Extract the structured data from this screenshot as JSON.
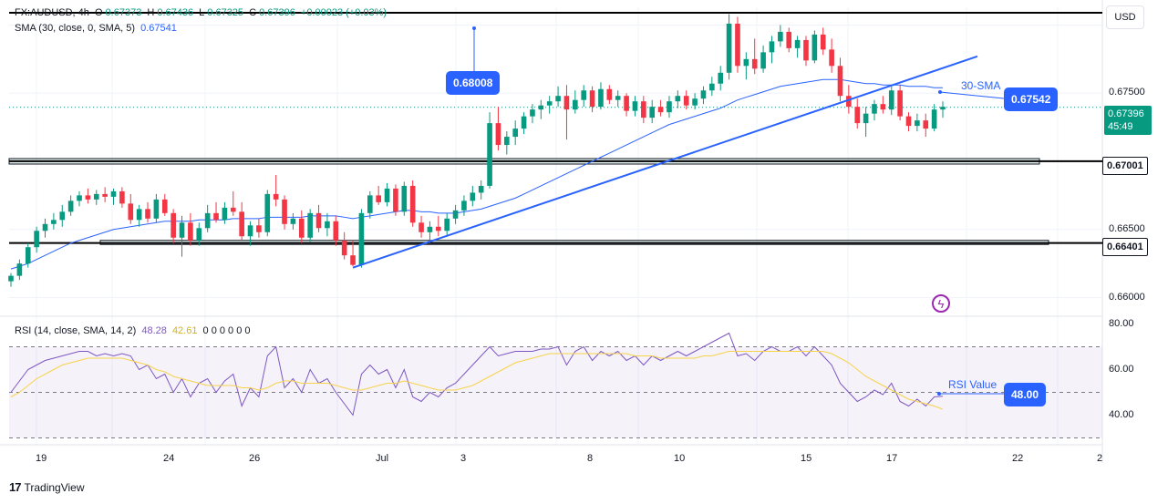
{
  "header": {
    "symbol": "FX:AUDUSD, 4h",
    "open_label": "O",
    "open": "0.67373",
    "high_label": "H",
    "high": "0.67436",
    "low_label": "L",
    "low": "0.67325",
    "close_label": "C",
    "close": "0.67396",
    "change": "+0.00023 (+0.03%)",
    "sma_label": "SMA (30, close, 0, SMA, 5)",
    "sma_value": "0.67541"
  },
  "rsi_header": {
    "label": "RSI (14, close, SMA, 14, 2)",
    "rsi_value": "48.28",
    "ma_value": "42.61",
    "extra_values": "0 0 0 0 0 0"
  },
  "currency_button": "USD",
  "branding": "TradingView",
  "price_axis": {
    "ticks": [
      "0.67500",
      "0.66500",
      "0.66000"
    ],
    "badges": {
      "current": {
        "price": "0.67396",
        "countdown": "45:49"
      },
      "level_high": "0.67001",
      "level_low": "0.66401"
    }
  },
  "rsi_axis": {
    "ticks": [
      "80.00",
      "60.00",
      "40.00"
    ]
  },
  "time_axis": {
    "labels": [
      "19",
      "24",
      "26",
      "Jul",
      "3",
      "8",
      "10",
      "15",
      "17",
      "22",
      "2"
    ]
  },
  "annotations": {
    "peak_callout": "0.68008",
    "sma_callout": "0.67542",
    "sma_text": "30-SMA",
    "rsi_text": "RSI Value",
    "rsi_callout": "48.00"
  },
  "colors": {
    "up": "#089981",
    "down": "#f23645",
    "sma": "#2962ff",
    "rsi": "#7e57c2",
    "rsi_ma": "#f7d34a",
    "trendline": "#2962ff"
  },
  "chart_data": {
    "type": "candlestick",
    "symbol": "FX:AUDUSD",
    "timeframe": "4h",
    "ylim": [
      0.6587,
      0.6813
    ],
    "horizontal_levels": [
      0.6809,
      0.67001,
      0.66401
    ],
    "support_zones": [
      [
        0.6698,
        0.6702
      ],
      [
        0.6639,
        0.6642
      ]
    ],
    "trendline": {
      "from_price": 0.6622,
      "to_price": 0.6777
    },
    "candles": [
      [
        0.6612,
        0.6618,
        0.6608,
        0.6616
      ],
      [
        0.6616,
        0.6628,
        0.6613,
        0.6625
      ],
      [
        0.6625,
        0.664,
        0.6622,
        0.6637
      ],
      [
        0.6637,
        0.6652,
        0.6633,
        0.6649
      ],
      [
        0.6649,
        0.6658,
        0.6644,
        0.6654
      ],
      [
        0.6654,
        0.6662,
        0.665,
        0.6657
      ],
      [
        0.6657,
        0.6668,
        0.6652,
        0.6663
      ],
      [
        0.6663,
        0.6675,
        0.666,
        0.6671
      ],
      [
        0.6671,
        0.6678,
        0.6667,
        0.6675
      ],
      [
        0.6675,
        0.668,
        0.6669,
        0.6672
      ],
      [
        0.6672,
        0.6679,
        0.6668,
        0.6676
      ],
      [
        0.6676,
        0.6681,
        0.667,
        0.6674
      ],
      [
        0.6674,
        0.668,
        0.6668,
        0.6678
      ],
      [
        0.6678,
        0.6681,
        0.6666,
        0.6669
      ],
      [
        0.6669,
        0.6676,
        0.6654,
        0.6657
      ],
      [
        0.6657,
        0.6668,
        0.6652,
        0.6665
      ],
      [
        0.6665,
        0.667,
        0.6655,
        0.6658
      ],
      [
        0.6658,
        0.6676,
        0.6655,
        0.6672
      ],
      [
        0.6672,
        0.6676,
        0.666,
        0.6662
      ],
      [
        0.6662,
        0.6665,
        0.664,
        0.6644
      ],
      [
        0.6644,
        0.666,
        0.663,
        0.6655
      ],
      [
        0.6655,
        0.6662,
        0.6638,
        0.6642
      ],
      [
        0.6642,
        0.6655,
        0.6638,
        0.6651
      ],
      [
        0.6651,
        0.6668,
        0.6648,
        0.6662
      ],
      [
        0.6662,
        0.667,
        0.6655,
        0.6657
      ],
      [
        0.6657,
        0.667,
        0.6654,
        0.6666
      ],
      [
        0.6666,
        0.6678,
        0.666,
        0.6663
      ],
      [
        0.6663,
        0.667,
        0.6642,
        0.6645
      ],
      [
        0.6645,
        0.6656,
        0.6638,
        0.6653
      ],
      [
        0.6653,
        0.6658,
        0.6644,
        0.6648
      ],
      [
        0.6648,
        0.6679,
        0.6645,
        0.6676
      ],
      [
        0.6676,
        0.669,
        0.6667,
        0.6672
      ],
      [
        0.6672,
        0.6675,
        0.665,
        0.6654
      ],
      [
        0.6654,
        0.6662,
        0.665,
        0.6658
      ],
      [
        0.6658,
        0.6664,
        0.664,
        0.6644
      ],
      [
        0.6644,
        0.6665,
        0.6641,
        0.6662
      ],
      [
        0.6662,
        0.6668,
        0.6648,
        0.6651
      ],
      [
        0.6651,
        0.6662,
        0.6645,
        0.6656
      ],
      [
        0.6656,
        0.666,
        0.6638,
        0.6642
      ],
      [
        0.6642,
        0.6648,
        0.6628,
        0.6631
      ],
      [
        0.6631,
        0.6642,
        0.6623,
        0.6624
      ],
      [
        0.6624,
        0.6665,
        0.6622,
        0.6662
      ],
      [
        0.6662,
        0.6678,
        0.6658,
        0.6675
      ],
      [
        0.6675,
        0.6682,
        0.6668,
        0.667
      ],
      [
        0.667,
        0.6684,
        0.6667,
        0.668
      ],
      [
        0.668,
        0.6683,
        0.666,
        0.6663
      ],
      [
        0.6663,
        0.6685,
        0.666,
        0.6682
      ],
      [
        0.6682,
        0.6686,
        0.6652,
        0.6655
      ],
      [
        0.6655,
        0.666,
        0.6644,
        0.6648
      ],
      [
        0.6648,
        0.6656,
        0.664,
        0.6652
      ],
      [
        0.6652,
        0.666,
        0.6645,
        0.6649
      ],
      [
        0.6649,
        0.6662,
        0.6646,
        0.6658
      ],
      [
        0.6658,
        0.6668,
        0.6654,
        0.6664
      ],
      [
        0.6664,
        0.6675,
        0.666,
        0.6671
      ],
      [
        0.6671,
        0.6682,
        0.6667,
        0.6677
      ],
      [
        0.6677,
        0.6686,
        0.6672,
        0.6682
      ],
      [
        0.6682,
        0.6736,
        0.668,
        0.6728
      ],
      [
        0.6728,
        0.674,
        0.6708,
        0.6712
      ],
      [
        0.6712,
        0.6722,
        0.6705,
        0.6718
      ],
      [
        0.6718,
        0.673,
        0.6712,
        0.6724
      ],
      [
        0.6724,
        0.6736,
        0.672,
        0.6733
      ],
      [
        0.6733,
        0.6742,
        0.6728,
        0.6738
      ],
      [
        0.6738,
        0.6745,
        0.6731,
        0.6741
      ],
      [
        0.6741,
        0.6748,
        0.6735,
        0.6744
      ],
      [
        0.6744,
        0.6755,
        0.674,
        0.6748
      ],
      [
        0.6748,
        0.6756,
        0.6716,
        0.6738
      ],
      [
        0.6738,
        0.6752,
        0.6735,
        0.6745
      ],
      [
        0.6745,
        0.6756,
        0.674,
        0.6752
      ],
      [
        0.6752,
        0.6755,
        0.6736,
        0.674
      ],
      [
        0.674,
        0.6758,
        0.6738,
        0.6753
      ],
      [
        0.6753,
        0.6756,
        0.6742,
        0.6745
      ],
      [
        0.6745,
        0.6752,
        0.674,
        0.6748
      ],
      [
        0.6748,
        0.675,
        0.6733,
        0.6737
      ],
      [
        0.6737,
        0.6748,
        0.6733,
        0.6744
      ],
      [
        0.6744,
        0.6748,
        0.6728,
        0.6732
      ],
      [
        0.6732,
        0.6745,
        0.6728,
        0.674
      ],
      [
        0.674,
        0.6745,
        0.6733,
        0.6736
      ],
      [
        0.6736,
        0.6748,
        0.6732,
        0.6744
      ],
      [
        0.6744,
        0.6752,
        0.6739,
        0.6748
      ],
      [
        0.6748,
        0.6752,
        0.6738,
        0.6741
      ],
      [
        0.6741,
        0.675,
        0.6738,
        0.6746
      ],
      [
        0.6746,
        0.6755,
        0.6742,
        0.6752
      ],
      [
        0.6752,
        0.6762,
        0.6748,
        0.6757
      ],
      [
        0.6757,
        0.677,
        0.6752,
        0.6765
      ],
      [
        0.6765,
        0.6808,
        0.676,
        0.6801
      ],
      [
        0.6801,
        0.6806,
        0.6765,
        0.677
      ],
      [
        0.677,
        0.678,
        0.676,
        0.6775
      ],
      [
        0.6775,
        0.679,
        0.6764,
        0.6768
      ],
      [
        0.6768,
        0.6785,
        0.6765,
        0.678
      ],
      [
        0.678,
        0.6792,
        0.6772,
        0.6788
      ],
      [
        0.6788,
        0.68,
        0.6784,
        0.6795
      ],
      [
        0.6795,
        0.6798,
        0.678,
        0.6783
      ],
      [
        0.6783,
        0.6792,
        0.6776,
        0.6789
      ],
      [
        0.6789,
        0.6792,
        0.677,
        0.6774
      ],
      [
        0.6774,
        0.6796,
        0.6772,
        0.6793
      ],
      [
        0.6793,
        0.6798,
        0.6778,
        0.6782
      ],
      [
        0.6782,
        0.679,
        0.6765,
        0.677
      ],
      [
        0.677,
        0.6776,
        0.6744,
        0.6748
      ],
      [
        0.6748,
        0.6756,
        0.6735,
        0.674
      ],
      [
        0.674,
        0.6746,
        0.6724,
        0.6728
      ],
      [
        0.6728,
        0.674,
        0.6718,
        0.6735
      ],
      [
        0.6735,
        0.6745,
        0.673,
        0.6742
      ],
      [
        0.6742,
        0.6748,
        0.6735,
        0.6738
      ],
      [
        0.6738,
        0.6755,
        0.6734,
        0.6752
      ],
      [
        0.6752,
        0.6756,
        0.673,
        0.6733
      ],
      [
        0.6733,
        0.6736,
        0.6722,
        0.6726
      ],
      [
        0.6726,
        0.6735,
        0.6722,
        0.673
      ],
      [
        0.673,
        0.6735,
        0.6718,
        0.6724
      ],
      [
        0.6724,
        0.6742,
        0.6722,
        0.6738
      ],
      [
        0.6738,
        0.6744,
        0.6732,
        0.674
      ]
    ],
    "sma_30": [
      0.6621,
      0.6623,
      0.6625,
      0.6628,
      0.6631,
      0.6634,
      0.6637,
      0.664,
      0.6642,
      0.6644,
      0.6646,
      0.6648,
      0.665,
      0.6651,
      0.6652,
      0.6653,
      0.6654,
      0.6655,
      0.6656,
      0.6656,
      0.6656,
      0.6656,
      0.6657,
      0.6657,
      0.6657,
      0.6657,
      0.6658,
      0.6658,
      0.6658,
      0.6658,
      0.6659,
      0.6659,
      0.6659,
      0.6659,
      0.6659,
      0.666,
      0.666,
      0.666,
      0.666,
      0.6659,
      0.6658,
      0.6659,
      0.666,
      0.6661,
      0.6662,
      0.6663,
      0.6664,
      0.6664,
      0.6663,
      0.6663,
      0.6662,
      0.6662,
      0.6662,
      0.6663,
      0.6664,
      0.6665,
      0.6667,
      0.6669,
      0.6671,
      0.6673,
      0.6676,
      0.6679,
      0.6682,
      0.6685,
      0.6688,
      0.6691,
      0.6694,
      0.6697,
      0.67,
      0.6703,
      0.6706,
      0.6709,
      0.6712,
      0.6715,
      0.6718,
      0.6721,
      0.6724,
      0.6727,
      0.6729,
      0.6731,
      0.6733,
      0.6735,
      0.6737,
      0.6739,
      0.6742,
      0.6745,
      0.6747,
      0.6749,
      0.6751,
      0.6753,
      0.6755,
      0.6756,
      0.6757,
      0.6758,
      0.6759,
      0.676,
      0.676,
      0.676,
      0.6759,
      0.6758,
      0.6757,
      0.6757,
      0.6756,
      0.6756,
      0.6756,
      0.6755,
      0.6755,
      0.6755,
      0.6754,
      0.6754
    ],
    "rsi": [
      50,
      55,
      60,
      62,
      64,
      65,
      66,
      67,
      68,
      68,
      66,
      67,
      66,
      67,
      66,
      60,
      62,
      56,
      58,
      50,
      56,
      48,
      54,
      56,
      50,
      55,
      58,
      44,
      52,
      48,
      66,
      70,
      52,
      56,
      50,
      60,
      54,
      56,
      50,
      45,
      40,
      58,
      62,
      58,
      60,
      52,
      60,
      48,
      46,
      50,
      48,
      52,
      54,
      58,
      62,
      66,
      70,
      66,
      67,
      68,
      68,
      68,
      69,
      69,
      70,
      62,
      68,
      70,
      64,
      68,
      66,
      68,
      64,
      66,
      62,
      66,
      64,
      66,
      68,
      66,
      68,
      70,
      72,
      74,
      76,
      66,
      67,
      64,
      68,
      70,
      68,
      68,
      70,
      66,
      70,
      66,
      62,
      54,
      50,
      46,
      48,
      51,
      49,
      54,
      46,
      44,
      47,
      44,
      48,
      48.28
    ],
    "rsi_ma": [
      48,
      50,
      53,
      56,
      58,
      60,
      62,
      63,
      64,
      65,
      65,
      65,
      65,
      65,
      64,
      63,
      62,
      60,
      59,
      57,
      56,
      55,
      54,
      53,
      53,
      53,
      53,
      52,
      52,
      51,
      52,
      54,
      55,
      55,
      54,
      54,
      54,
      54,
      53,
      52,
      51,
      51,
      52,
      53,
      54,
      54,
      55,
      54,
      53,
      52,
      51,
      51,
      51,
      52,
      53,
      55,
      57,
      59,
      61,
      63,
      64,
      65,
      66,
      67,
      67,
      67,
      67,
      67,
      67,
      67,
      67,
      67,
      67,
      66,
      66,
      66,
      65,
      65,
      65,
      65,
      65,
      66,
      66,
      67,
      68,
      68,
      68,
      68,
      68,
      68,
      68,
      68,
      68,
      68,
      68,
      68,
      67,
      65,
      63,
      60,
      57,
      55,
      53,
      51,
      49,
      47,
      46,
      45,
      44,
      42.61
    ],
    "rsi_ylim": [
      27,
      83
    ],
    "rsi_levels": [
      70,
      50,
      30
    ]
  }
}
